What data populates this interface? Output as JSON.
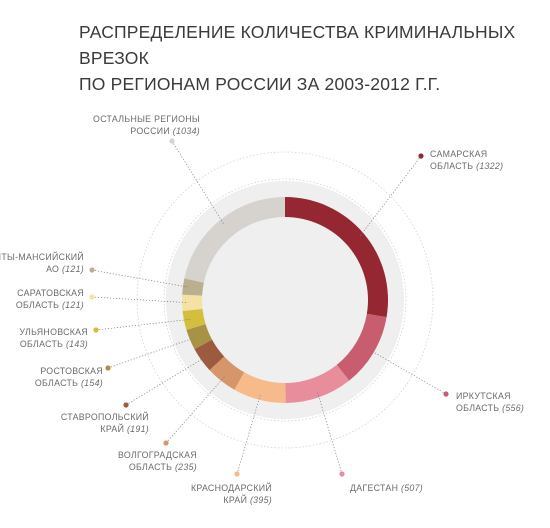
{
  "title": {
    "line1": "РАСПРЕДЕЛЕНИЕ КОЛИЧЕСТВА КРИМИНАЛЬНЫХ ВРЕЗОК",
    "line2": "ПО РЕГИОНАМ РОССИИ ЗА 2003-2012 Г.Г."
  },
  "chart_data": {
    "type": "pie",
    "title": "РАСПРЕДЕЛЕНИЕ КОЛИЧЕСТВА КРИМИНАЛЬНЫХ ВРЕЗОК ПО РЕГИОНАМ РОССИИ ЗА 2003-2012 Г.Г.",
    "grid": false,
    "legend": "none",
    "slices": [
      {
        "name_lines": [
          "САМАРСКАЯ",
          "ОБЛАСТЬ"
        ],
        "value": 1322,
        "color": "#952733"
      },
      {
        "name_lines": [
          "ИРКУТСКАЯ",
          "ОБЛАСТЬ"
        ],
        "value": 556,
        "color": "#c85d70"
      },
      {
        "name_lines": [
          "ДАГЕСТАН"
        ],
        "value": 507,
        "color": "#e88d9c"
      },
      {
        "name_lines": [
          "КРАСНОДАРСКИЙ",
          "КРАЙ"
        ],
        "value": 395,
        "color": "#f7bb8b"
      },
      {
        "name_lines": [
          "ВОЛГОГРАДСКАЯ",
          "ОБЛАСТЬ"
        ],
        "value": 235,
        "color": "#d6956a"
      },
      {
        "name_lines": [
          "СТАВРОПОЛЬСКИЙ",
          "КРАЙ"
        ],
        "value": 191,
        "color": "#9c5b3e"
      },
      {
        "name_lines": [
          "РОСТОВСКАЯ",
          "ОБЛАСТЬ"
        ],
        "value": 154,
        "color": "#a89244"
      },
      {
        "name_lines": [
          "УЛЬЯНОВСКАЯ",
          "ОБЛАСТЬ"
        ],
        "value": 143,
        "color": "#d4be3e"
      },
      {
        "name_lines": [
          "САРАТОВСКАЯ",
          "ОБЛАСТЬ"
        ],
        "value": 121,
        "color": "#f3e2a4"
      },
      {
        "name_lines": [
          "ХАНТЫ-МАНСИЙСКИЙ",
          "АО"
        ],
        "value": 121,
        "color": "#bab08f"
      },
      {
        "name_lines": [
          "ОСТАЛЬНЫЕ РЕГИОНЫ",
          "РОССИИ"
        ],
        "value": 1034,
        "color": "#d6d3cf"
      }
    ]
  }
}
